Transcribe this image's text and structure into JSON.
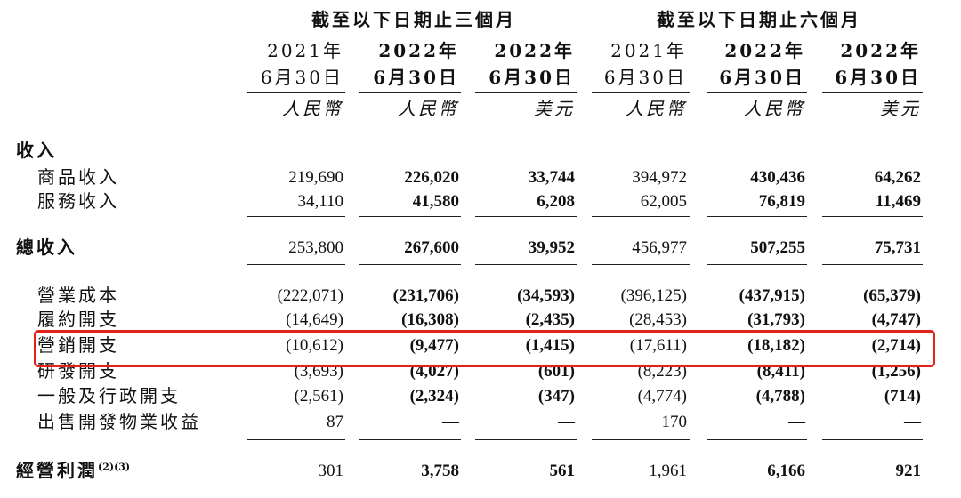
{
  "header": {
    "group1": "截至以下日期止三個月",
    "group2": "截至以下日期止六個月",
    "columns": [
      {
        "year": "2021年",
        "date": "6月30日",
        "currency": "人民幣",
        "bold": false
      },
      {
        "year": "2022年",
        "date": "6月30日",
        "currency": "人民幣",
        "bold": true
      },
      {
        "year": "2022年",
        "date": "6月30日",
        "currency": "美元",
        "bold": true
      },
      {
        "year": "2021年",
        "date": "6月30日",
        "currency": "人民幣",
        "bold": false
      },
      {
        "year": "2022年",
        "date": "6月30日",
        "currency": "人民幣",
        "bold": true
      },
      {
        "year": "2022年",
        "date": "6月30日",
        "currency": "美元",
        "bold": true
      }
    ]
  },
  "rows": [
    {
      "label": "收入",
      "kind": "section",
      "values": []
    },
    {
      "label": "商品收入",
      "kind": "item",
      "values": [
        "219,690",
        "226,020",
        "33,744",
        "394,972",
        "430,436",
        "64,262"
      ]
    },
    {
      "label": "服務收入",
      "kind": "item",
      "values": [
        "34,110",
        "41,580",
        "6,208",
        "62,005",
        "76,819",
        "11,469"
      ]
    },
    {
      "label": "總收入",
      "kind": "total",
      "values": [
        "253,800",
        "267,600",
        "39,952",
        "456,977",
        "507,255",
        "75,731"
      ]
    },
    {
      "label": "營業成本",
      "kind": "item",
      "values": [
        "(222,071)",
        "(231,706)",
        "(34,593)",
        "(396,125)",
        "(437,915)",
        "(65,379)"
      ]
    },
    {
      "label": "履約開支",
      "kind": "item",
      "values": [
        "(14,649)",
        "(16,308)",
        "(2,435)",
        "(28,453)",
        "(31,793)",
        "(4,747)"
      ]
    },
    {
      "label": "營銷開支",
      "kind": "item",
      "highlight": true,
      "values": [
        "(10,612)",
        "(9,477)",
        "(1,415)",
        "(17,611)",
        "(18,182)",
        "(2,714)"
      ]
    },
    {
      "label": "研發開支",
      "kind": "item",
      "values": [
        "(3,693)",
        "(4,027)",
        "(601)",
        "(8,223)",
        "(8,411)",
        "(1,256)"
      ]
    },
    {
      "label": "一般及行政開支",
      "kind": "item",
      "values": [
        "(2,561)",
        "(2,324)",
        "(347)",
        "(4,774)",
        "(4,788)",
        "(714)"
      ]
    },
    {
      "label": "出售開發物業收益",
      "kind": "item",
      "values": [
        "87",
        "—",
        "—",
        "170",
        "—",
        "—"
      ]
    },
    {
      "label": "經營利潤",
      "kind": "total",
      "footnote": "(2)(3)",
      "values": [
        "301",
        "3,758",
        "561",
        "1,961",
        "6,166",
        "921"
      ]
    }
  ]
}
